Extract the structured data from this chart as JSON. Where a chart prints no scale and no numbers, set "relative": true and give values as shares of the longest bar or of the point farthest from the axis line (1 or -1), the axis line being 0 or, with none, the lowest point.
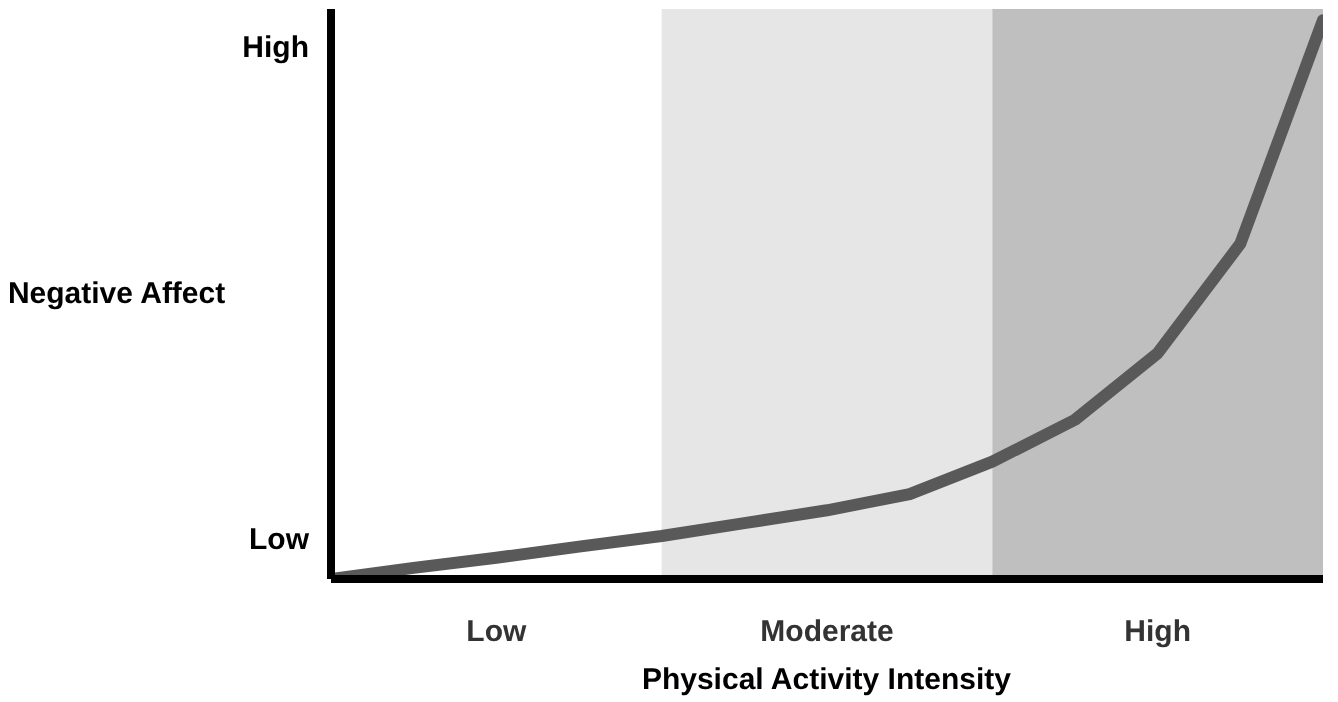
{
  "chart_data": {
    "type": "line",
    "relative": true,
    "xlabel": "Physical Activity Intensity",
    "ylabel": "Negative Affect",
    "categories": [
      null,
      null,
      "Low",
      null,
      null,
      null,
      "Moderate",
      null,
      null,
      null,
      "High",
      null,
      null
    ],
    "series": [
      {
        "color": "#595959",
        "values": [
          0,
          0.02,
          0.038,
          0.058,
          0.077,
          0.1,
          0.123,
          0.152,
          0.21,
          0.285,
          0.404,
          0.6,
          1.0
        ]
      }
    ],
    "annotations": [
      "High",
      "Low"
    ],
    "marker": "none",
    "line_style": "solid"
  }
}
